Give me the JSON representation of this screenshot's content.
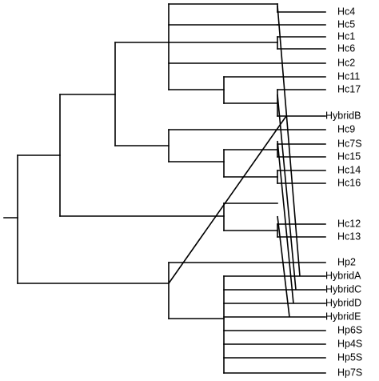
{
  "tree": {
    "leaves": [
      "Hc4",
      "Hc5",
      "Hc1",
      "Hc6",
      "Hc2",
      "Hc11",
      "Hc17",
      "HybridB",
      "Hc9",
      "Hc7S",
      "Hc15",
      "Hc14",
      "Hc16",
      "Hc12",
      "Hc13",
      "Hp2",
      "HybridA",
      "HybridC",
      "HybridD",
      "HybridE",
      "Hp6S",
      "Hp4S",
      "Hp5S",
      "Hp7S"
    ],
    "links": [
      [
        "HybridA",
        "Hc4"
      ],
      [
        "HybridB",
        "Hp2"
      ],
      [
        "HybridC",
        "Hc17"
      ],
      [
        "HybridD",
        "Hc9"
      ],
      [
        "HybridE",
        "Hc12"
      ]
    ]
  }
}
